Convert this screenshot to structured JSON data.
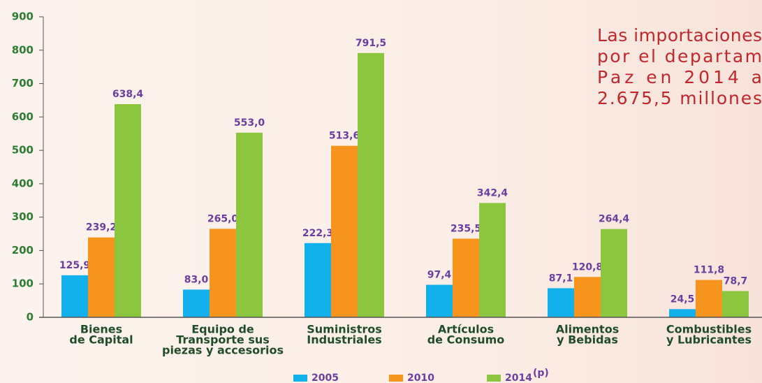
{
  "chart_data": {
    "type": "bar",
    "categories": [
      [
        "Bienes",
        "de Capital"
      ],
      [
        "Equipo de",
        "Transporte sus",
        "piezas y accesorios"
      ],
      [
        "Suministros",
        "Industriales"
      ],
      [
        "Artículos",
        "de Consumo"
      ],
      [
        "Alimentos",
        "y Bebidas"
      ],
      [
        "Combustibles",
        "y Lubricantes"
      ]
    ],
    "series": [
      {
        "name": "2005",
        "color": "#13b1ec",
        "values": [
          125.9,
          83.0,
          222.3,
          97.4,
          87.1,
          24.5
        ],
        "value_labels": [
          "125,9",
          "83,0",
          "222,3",
          "97,4",
          "87,1",
          "24,5"
        ]
      },
      {
        "name": "2010",
        "color": "#f7941d",
        "values": [
          239.2,
          265.0,
          513.6,
          235.5,
          120.8,
          111.8
        ],
        "value_labels": [
          "239,2",
          "265,0",
          "513,6",
          "235,5",
          "120,8",
          "111,8"
        ]
      },
      {
        "name": "2014",
        "superscript": "(p)",
        "color": "#8cc63f",
        "values": [
          638.4,
          553.0,
          791.5,
          342.4,
          264.4,
          78.7
        ],
        "value_labels": [
          "638,4",
          "553,0",
          "791,5",
          "342,4",
          "264,4",
          "78,7"
        ]
      }
    ],
    "ylim": [
      0,
      900
    ],
    "yticks": [
      0,
      100,
      200,
      300,
      400,
      500,
      600,
      700,
      800,
      900
    ],
    "annotation": [
      "Las importaciones",
      "por el departam",
      "Paz en 2014 a",
      "2.675,5 millones"
    ]
  }
}
